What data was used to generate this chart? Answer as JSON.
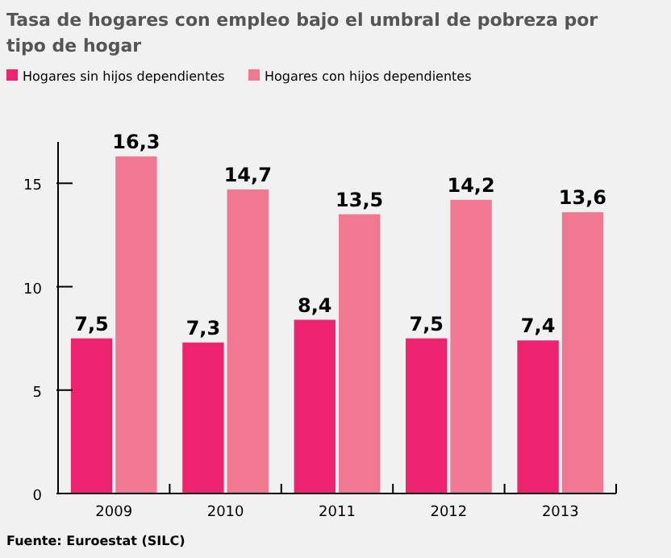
{
  "chart_data": {
    "type": "bar",
    "title": "Tasa de hogares con empleo bajo el umbral de pobreza por tipo de hogar",
    "categories": [
      "2009",
      "2010",
      "2011",
      "2012",
      "2013"
    ],
    "series": [
      {
        "name": "Hogares sin hijos dependientes",
        "color": "#ee2370",
        "values": [
          7.5,
          7.3,
          8.4,
          7.5,
          7.4
        ],
        "value_labels": [
          "7,5",
          "7,3",
          "8,4",
          "7,5",
          "7,4"
        ]
      },
      {
        "name": "Hogares con hijos dependientes",
        "color": "#f07890",
        "values": [
          16.3,
          14.7,
          13.5,
          14.2,
          13.6
        ],
        "value_labels": [
          "16,3",
          "14,7",
          "13,5",
          "14,2",
          "13,6"
        ]
      }
    ],
    "ylim": [
      0,
      17
    ],
    "yticks": [
      0,
      5,
      10,
      15
    ],
    "legend": "top left",
    "annotations": [
      "Fuente: Euroestat (SILC)"
    ]
  }
}
